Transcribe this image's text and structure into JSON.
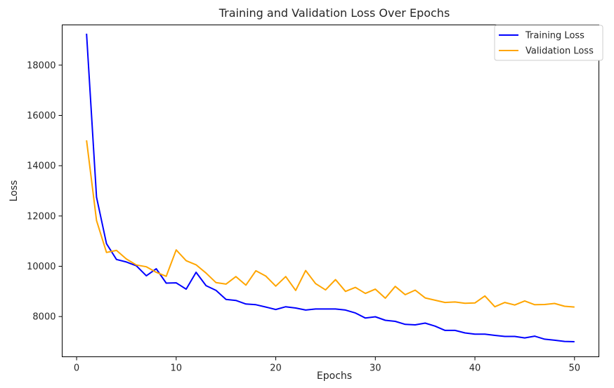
{
  "chart_data": {
    "type": "line",
    "title": "Training and Validation Loss Over Epochs",
    "xlabel": "Epochs",
    "ylabel": "Loss",
    "xlim": [
      -1.45,
      52.45
    ],
    "ylim": [
      6400,
      19600
    ],
    "xticks": [
      0,
      10,
      20,
      30,
      40,
      50
    ],
    "yticks": [
      8000,
      10000,
      12000,
      14000,
      16000,
      18000
    ],
    "grid": false,
    "legend_position": "top-right",
    "x": [
      1,
      2,
      3,
      4,
      5,
      6,
      7,
      8,
      9,
      10,
      11,
      12,
      13,
      14,
      15,
      16,
      17,
      18,
      19,
      20,
      21,
      22,
      23,
      24,
      25,
      26,
      27,
      28,
      29,
      30,
      31,
      32,
      33,
      34,
      35,
      36,
      37,
      38,
      39,
      40,
      41,
      42,
      43,
      44,
      45,
      46,
      47,
      48,
      49,
      50
    ],
    "series": [
      {
        "name": "Training Loss",
        "color": "#0000ff",
        "values": [
          19250,
          12750,
          10900,
          10270,
          10170,
          10020,
          9620,
          9900,
          9330,
          9340,
          9090,
          9760,
          9230,
          9040,
          8680,
          8640,
          8500,
          8470,
          8380,
          8280,
          8390,
          8340,
          8260,
          8300,
          8300,
          8300,
          8260,
          8140,
          7940,
          7990,
          7850,
          7810,
          7690,
          7670,
          7740,
          7620,
          7450,
          7450,
          7350,
          7300,
          7300,
          7250,
          7210,
          7210,
          7150,
          7220,
          7100,
          7060,
          7010,
          7000
        ]
      },
      {
        "name": "Validation Loss",
        "color": "#ffa500",
        "values": [
          15010,
          11820,
          10550,
          10630,
          10290,
          10050,
          9980,
          9760,
          9600,
          10650,
          10220,
          10060,
          9730,
          9350,
          9290,
          9590,
          9250,
          9820,
          9610,
          9210,
          9590,
          9040,
          9830,
          9310,
          9060,
          9470,
          9000,
          9160,
          8920,
          9090,
          8730,
          9200,
          8870,
          9050,
          8740,
          8650,
          8560,
          8580,
          8530,
          8540,
          8820,
          8390,
          8560,
          8460,
          8620,
          8470,
          8480,
          8520,
          8410,
          8380
        ]
      }
    ]
  }
}
